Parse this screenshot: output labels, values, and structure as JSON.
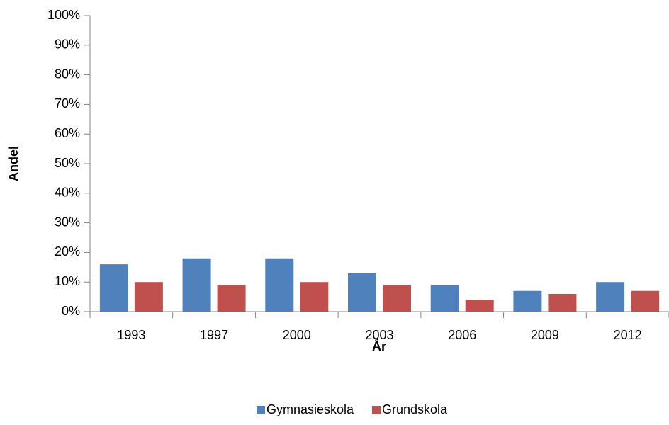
{
  "chart_data": {
    "type": "bar",
    "x_label": "År",
    "y_label": "Andel",
    "categories": [
      "1993",
      "1997",
      "2000",
      "2003",
      "2006",
      "2009",
      "2012"
    ],
    "series": [
      {
        "name": "Gymnasieskola",
        "color": "#4f81bd",
        "values": [
          16,
          18,
          18,
          13,
          9,
          7,
          10
        ]
      },
      {
        "name": "Grundskola",
        "color": "#c0504d",
        "values": [
          10,
          9,
          10,
          9,
          4,
          6,
          7
        ]
      }
    ],
    "ylim": [
      0,
      100
    ],
    "yticks": [
      {
        "value": 0,
        "label": "0%"
      },
      {
        "value": 10,
        "label": "10%"
      },
      {
        "value": 20,
        "label": "20%"
      },
      {
        "value": 30,
        "label": "30%"
      },
      {
        "value": 40,
        "label": "40%"
      },
      {
        "value": 50,
        "label": "50%"
      },
      {
        "value": 60,
        "label": "60%"
      },
      {
        "value": 70,
        "label": "70%"
      },
      {
        "value": 80,
        "label": "80%"
      },
      {
        "value": 90,
        "label": "90%"
      },
      {
        "value": 100,
        "label": "100%"
      }
    ],
    "grid": false,
    "legend": "bottom"
  }
}
